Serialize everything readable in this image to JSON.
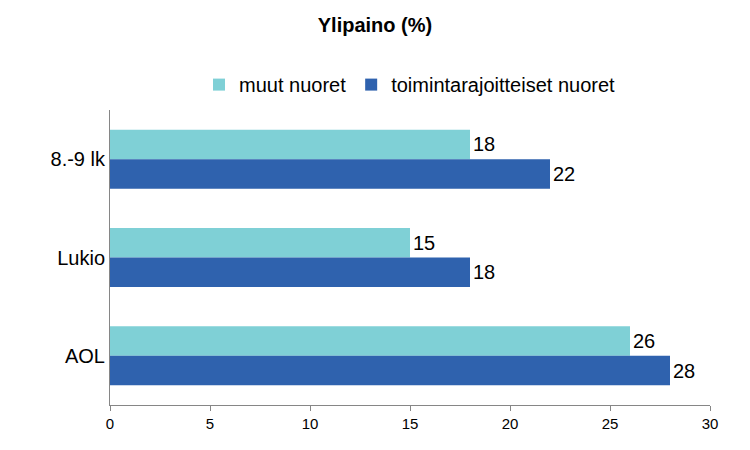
{
  "chart_data": {
    "type": "bar",
    "title": "Ylipaino (%)",
    "orientation": "horizontal",
    "categories": [
      "8.-9 lk",
      "Lukio",
      "AOL"
    ],
    "series": [
      {
        "name": "muut nuoret",
        "color": "#7fd0d6",
        "values": [
          18,
          15,
          26
        ]
      },
      {
        "name": "toimintarajoitteiset nuoret",
        "color": "#2f62ae",
        "values": [
          22,
          18,
          28
        ]
      }
    ],
    "xlim": [
      0,
      30
    ],
    "xticks": [
      0,
      5,
      10,
      15,
      20,
      25,
      30
    ],
    "grid": false,
    "legend": "top",
    "data_labels": true
  }
}
